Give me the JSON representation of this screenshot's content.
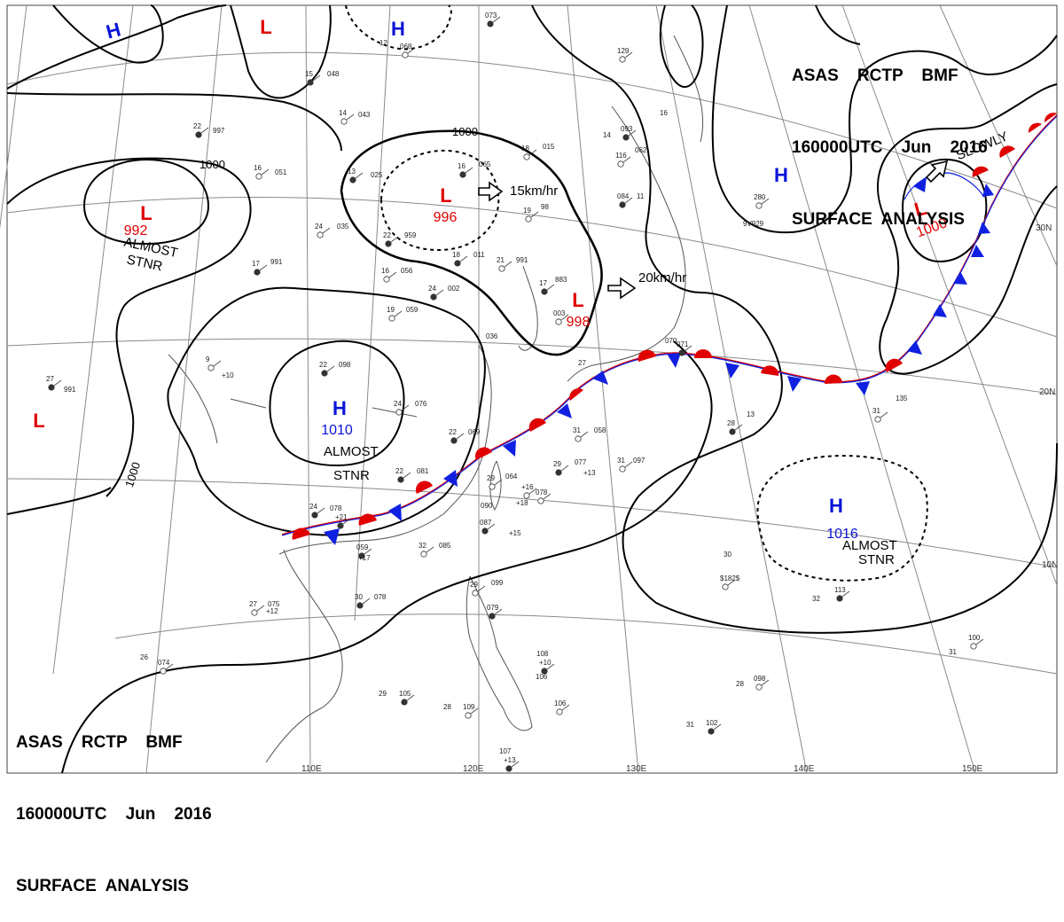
{
  "header_top": {
    "line1": "ASAS    RCTP    BMF",
    "line2": "160000UTC    Jun    2016",
    "line3": "SURFACE  ANALYSIS"
  },
  "header_bottom": {
    "line1": "ASAS    RCTP    BMF",
    "line2": "160000UTC    Jun    2016",
    "line3": "SURFACE  ANALYSIS"
  },
  "colors": {
    "low": "#e00000",
    "high": "#0a14d8",
    "warm_front": "#e00000",
    "cold_front": "#1020e0",
    "isobar": "#000000",
    "grid": "#8a8a8a"
  },
  "lat_labels": [
    {
      "text": "30N"
    },
    {
      "text": "20N"
    },
    {
      "text": "10N"
    }
  ],
  "lon_labels": [
    {
      "text": "110E"
    },
    {
      "text": "120E"
    },
    {
      "text": "130E"
    },
    {
      "text": "140E"
    },
    {
      "text": "150E"
    }
  ],
  "isobar_labels": [
    {
      "text": "1000"
    },
    {
      "text": "1000"
    },
    {
      "text": "1000"
    }
  ],
  "systems": [
    {
      "type": "L",
      "pressure": "992"
    },
    {
      "type": "L",
      "pressure": "996"
    },
    {
      "type": "L",
      "pressure": "998"
    },
    {
      "type": "L",
      "pressure": "1000"
    },
    {
      "type": "H",
      "pressure": "1010"
    },
    {
      "type": "H",
      "pressure": "1016"
    },
    {
      "type": "L",
      "pressure": ""
    },
    {
      "type": "L",
      "pressure": ""
    },
    {
      "type": "H",
      "pressure": ""
    },
    {
      "type": "H",
      "pressure": ""
    },
    {
      "type": "H",
      "pressure": ""
    }
  ],
  "movements": [
    {
      "text": "15km/hr"
    },
    {
      "text": "20km/hr"
    },
    {
      "text": "SLOWLY"
    }
  ],
  "annotations": [
    {
      "text": "ALMOST"
    },
    {
      "text": "STNR"
    },
    {
      "text": "ALMOST"
    },
    {
      "text": "STNR"
    },
    {
      "text": "ALMOST"
    },
    {
      "text": "STNR"
    }
  ],
  "station_obs": [
    {
      "t": "15"
    },
    {
      "t": "048"
    },
    {
      "t": "14"
    },
    {
      "t": "043"
    },
    {
      "t": "22"
    },
    {
      "t": "997"
    },
    {
      "t": "16"
    },
    {
      "t": "051"
    },
    {
      "t": "13"
    },
    {
      "t": "025"
    },
    {
      "t": "24"
    },
    {
      "t": "035"
    },
    {
      "t": "22"
    },
    {
      "t": "959"
    },
    {
      "t": "18"
    },
    {
      "t": "015"
    },
    {
      "t": "16"
    },
    {
      "t": "065"
    },
    {
      "t": "19"
    },
    {
      "t": "98"
    },
    {
      "t": "17"
    },
    {
      "t": "991"
    },
    {
      "t": "16"
    },
    {
      "t": "056"
    },
    {
      "t": "24"
    },
    {
      "t": "002"
    },
    {
      "t": "19"
    },
    {
      "t": "059"
    },
    {
      "t": "18"
    },
    {
      "t": "011"
    },
    {
      "t": "21"
    },
    {
      "t": "991"
    },
    {
      "t": "17"
    },
    {
      "t": "883"
    },
    {
      "t": "003"
    },
    {
      "t": "036"
    },
    {
      "t": "22"
    },
    {
      "t": "098"
    },
    {
      "t": "24"
    },
    {
      "t": "076"
    },
    {
      "t": "27"
    },
    {
      "t": "991"
    },
    {
      "t": "9"
    },
    {
      "t": "+10"
    },
    {
      "t": "22"
    },
    {
      "t": "069"
    },
    {
      "t": "31"
    },
    {
      "t": "058"
    },
    {
      "t": "22"
    },
    {
      "t": "081"
    },
    {
      "t": "29"
    },
    {
      "t": "064"
    },
    {
      "t": "29"
    },
    {
      "t": "077"
    },
    {
      "t": "31"
    },
    {
      "t": "097"
    },
    {
      "t": "24"
    },
    {
      "t": "078"
    },
    {
      "t": "078"
    },
    {
      "t": "090"
    },
    {
      "t": "087"
    },
    {
      "t": "+15"
    },
    {
      "t": "32"
    },
    {
      "t": "085"
    },
    {
      "t": "059"
    },
    {
      "t": "+17"
    },
    {
      "t": "27"
    },
    {
      "t": "075"
    },
    {
      "t": "30"
    },
    {
      "t": "078"
    },
    {
      "t": "29"
    },
    {
      "t": "099"
    },
    {
      "t": "079"
    },
    {
      "t": "26"
    },
    {
      "t": "074"
    },
    {
      "t": "29"
    },
    {
      "t": "105"
    },
    {
      "t": "28"
    },
    {
      "t": "109"
    },
    {
      "t": "108"
    },
    {
      "t": "+10"
    },
    {
      "t": "106"
    },
    {
      "t": "106"
    },
    {
      "t": "107"
    },
    {
      "t": "+13"
    },
    {
      "t": "28"
    },
    {
      "t": "098"
    },
    {
      "t": "31"
    },
    {
      "t": "102"
    },
    {
      "t": "31"
    },
    {
      "t": "100"
    },
    {
      "t": "32"
    },
    {
      "t": "113"
    },
    {
      "t": "30"
    },
    {
      "t": "31"
    },
    {
      "t": "135"
    },
    {
      "t": "28"
    },
    {
      "t": "13"
    },
    {
      "t": "129"
    },
    {
      "t": "14"
    },
    {
      "t": "093"
    },
    {
      "t": "16"
    },
    {
      "t": "116"
    },
    {
      "t": "062"
    },
    {
      "t": "084"
    },
    {
      "t": "11"
    },
    {
      "t": "280"
    },
    {
      "t": "9V929"
    },
    {
      "t": "073"
    },
    {
      "t": "12"
    },
    {
      "t": "068"
    },
    {
      "t": "070"
    },
    {
      "t": "071"
    },
    {
      "t": "27"
    },
    {
      "t": "$182$"
    },
    {
      "t": "+12"
    },
    {
      "t": "+21"
    },
    {
      "t": "+18"
    },
    {
      "t": "+16"
    },
    {
      "t": "+13"
    }
  ]
}
